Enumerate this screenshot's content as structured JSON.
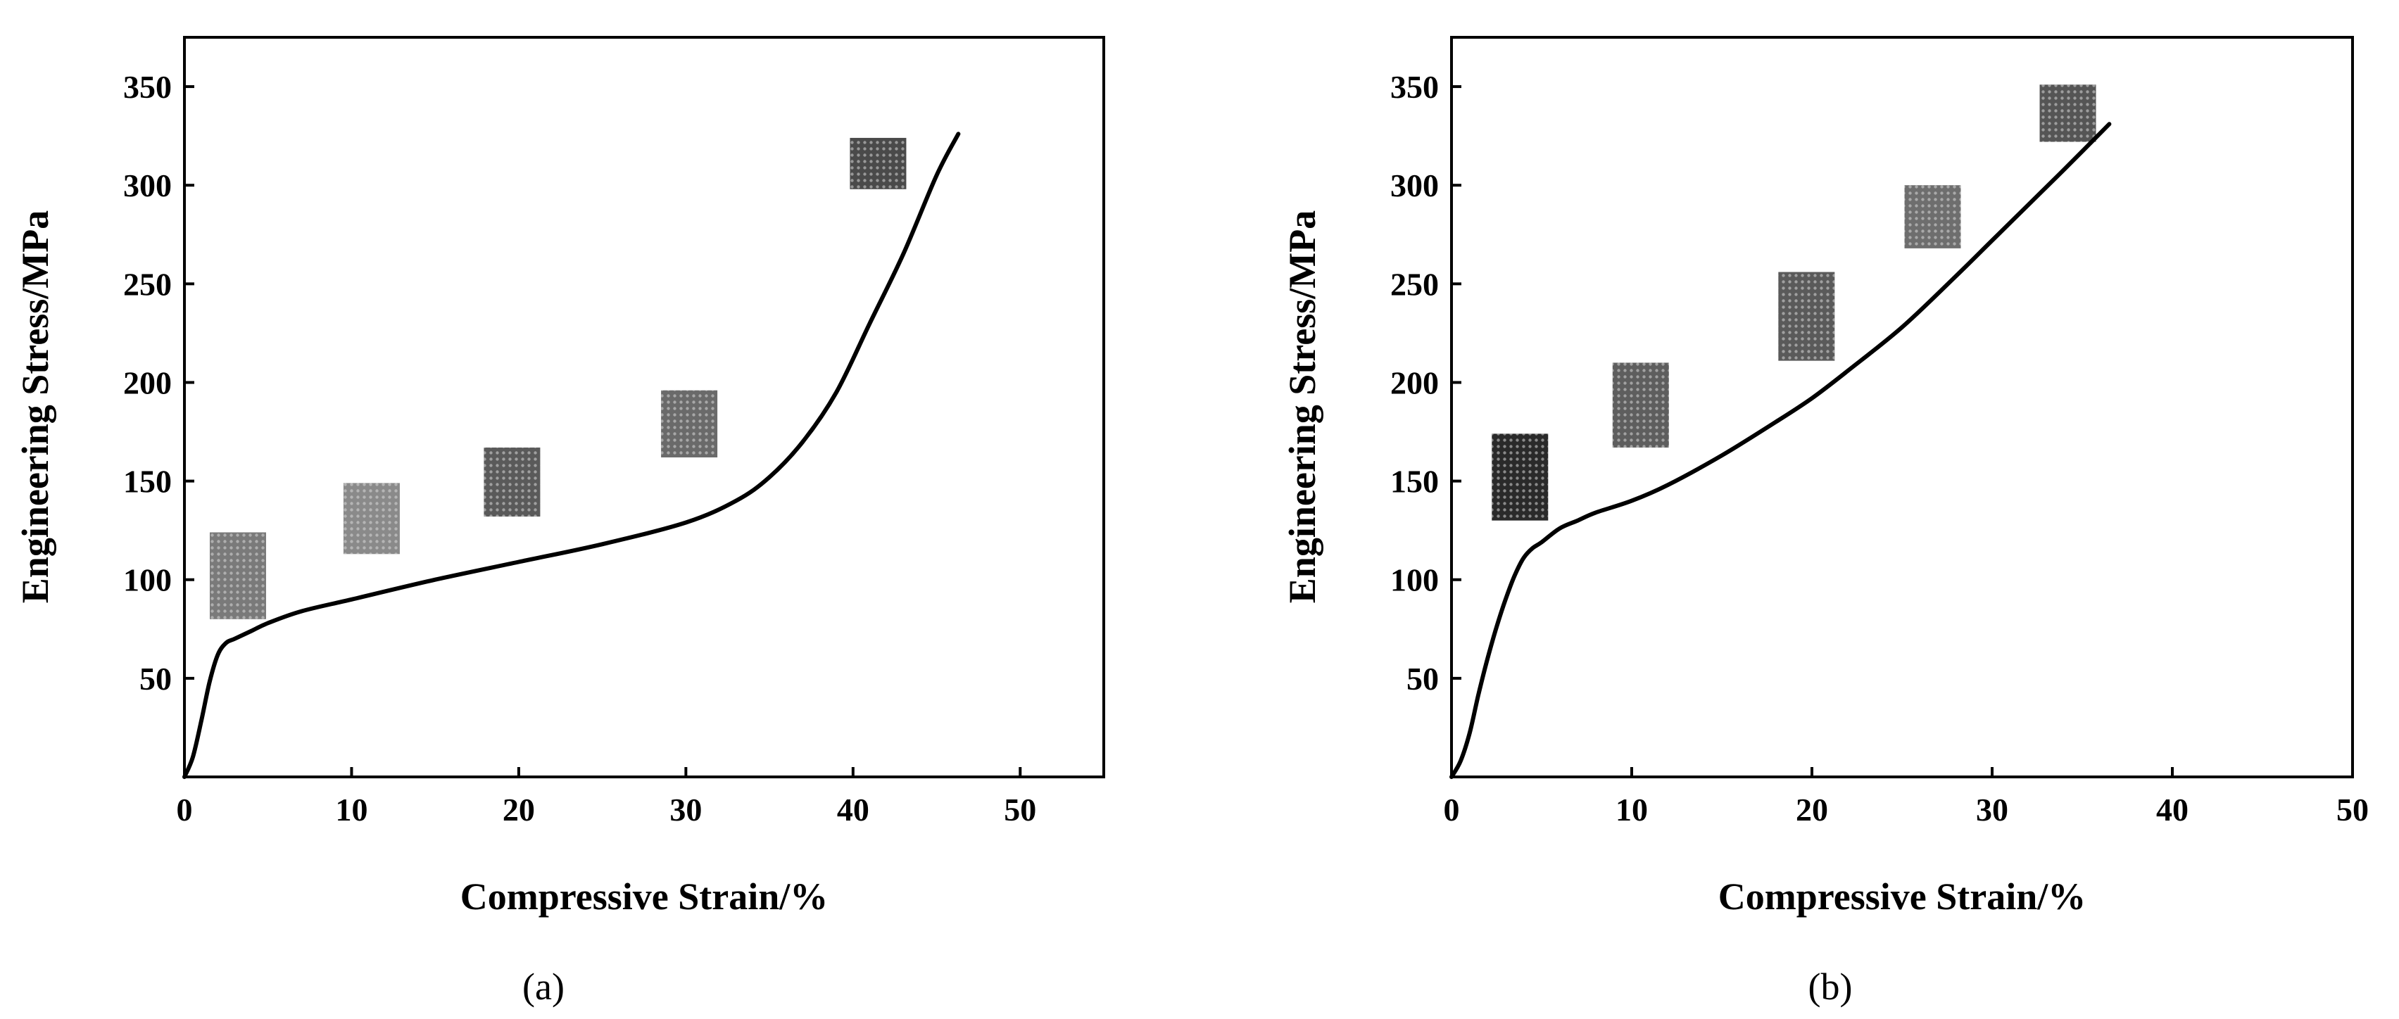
{
  "chart_data": [
    {
      "type": "line",
      "panel_label": "(a)",
      "xlabel": "Compressive Strain/%",
      "ylabel": "Engineering Stress/MPa",
      "xlim": [
        0,
        55
      ],
      "ylim": [
        0,
        375
      ],
      "xticks": [
        0,
        10,
        20,
        30,
        40,
        50
      ],
      "yticks": [
        50,
        100,
        150,
        200,
        250,
        300,
        350
      ],
      "x_tick_labels": [
        "0",
        "10",
        "20",
        "30",
        "40",
        "50"
      ],
      "y_tick_labels": [
        "50",
        "100",
        "150",
        "200",
        "250",
        "300",
        "350"
      ],
      "grid": false,
      "series": [
        {
          "name": "stress-strain",
          "x": [
            0,
            0.5,
            1,
            1.5,
            2,
            2.5,
            3,
            4,
            5,
            7,
            10,
            15,
            20,
            25,
            30,
            33,
            35,
            37,
            39,
            41,
            43,
            45,
            46.3
          ],
          "y": [
            0,
            10,
            28,
            48,
            62,
            68,
            70,
            74,
            78,
            84,
            90,
            100,
            109,
            118,
            129,
            140,
            152,
            170,
            195,
            230,
            265,
            305,
            326
          ]
        }
      ],
      "insets": [
        {
          "name": "specimen-1",
          "x_center": 3.2,
          "y_top": 124,
          "y_bottom": 80,
          "shade": "#7a7a7a"
        },
        {
          "name": "specimen-2",
          "x_center": 11.2,
          "y_top": 149,
          "y_bottom": 113,
          "shade": "#8a8a8a"
        },
        {
          "name": "specimen-3",
          "x_center": 19.6,
          "y_top": 167,
          "y_bottom": 132,
          "shade": "#5a5a5a"
        },
        {
          "name": "specimen-4",
          "x_center": 30.2,
          "y_top": 196,
          "y_bottom": 162,
          "shade": "#6a6a6a"
        },
        {
          "name": "specimen-5",
          "x_center": 41.5,
          "y_top": 324,
          "y_bottom": 298,
          "shade": "#4a4a4a"
        }
      ]
    },
    {
      "type": "line",
      "panel_label": "(b)",
      "xlabel": "Compressive Strain/%",
      "ylabel": "Engineering Stress/MPa",
      "xlim": [
        0,
        50
      ],
      "ylim": [
        0,
        375
      ],
      "xticks": [
        0,
        10,
        20,
        30,
        40,
        50
      ],
      "yticks": [
        50,
        100,
        150,
        200,
        250,
        300,
        350
      ],
      "x_tick_labels": [
        "0",
        "10",
        "20",
        "30",
        "40",
        "50"
      ],
      "y_tick_labels": [
        "50",
        "100",
        "150",
        "200",
        "250",
        "300",
        "350"
      ],
      "grid": false,
      "series": [
        {
          "name": "stress-strain",
          "x": [
            0,
            0.5,
            1,
            1.5,
            2,
            2.5,
            3,
            3.5,
            4,
            4.5,
            5,
            6,
            7,
            8,
            10,
            12,
            15,
            18,
            20,
            22,
            25,
            28,
            30,
            32,
            34,
            36.5
          ],
          "y": [
            0,
            8,
            22,
            42,
            60,
            76,
            90,
            102,
            111,
            116,
            119,
            126,
            130,
            134,
            140,
            148,
            163,
            180,
            192,
            206,
            228,
            254,
            272,
            290,
            308,
            331
          ]
        }
      ],
      "insets": [
        {
          "name": "specimen-1",
          "x_center": 3.8,
          "y_top": 174,
          "y_bottom": 130,
          "shade": "#2a2a2a"
        },
        {
          "name": "specimen-2",
          "x_center": 10.5,
          "y_top": 210,
          "y_bottom": 167,
          "shade": "#5e5e5e"
        },
        {
          "name": "specimen-3",
          "x_center": 19.7,
          "y_top": 256,
          "y_bottom": 211,
          "shade": "#5a5a5a"
        },
        {
          "name": "specimen-4",
          "x_center": 26.7,
          "y_top": 300,
          "y_bottom": 268,
          "shade": "#6e6e6e"
        },
        {
          "name": "specimen-5",
          "x_center": 34.2,
          "y_top": 351,
          "y_bottom": 322,
          "shade": "#555555"
        }
      ]
    }
  ]
}
